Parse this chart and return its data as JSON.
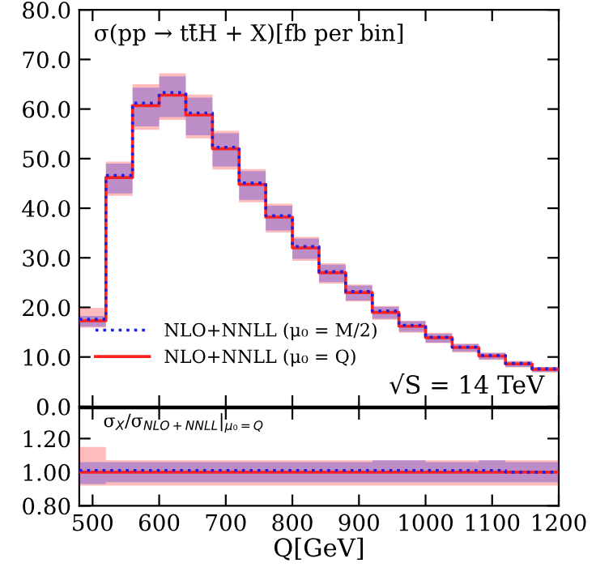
{
  "chart_data": [
    {
      "type": "step",
      "x": [
        480,
        520,
        560,
        600,
        640,
        680,
        720,
        760,
        800,
        840,
        880,
        920,
        960,
        1000,
        1040,
        1080,
        1120,
        1160,
        1200
      ],
      "series": [
        {
          "name": "NLO+NNLL (μ₀ = M/2)",
          "color": "#2020e0",
          "line_style": "dotted",
          "values": [
            17.6,
            46.6,
            61.2,
            63.3,
            59.2,
            52.3,
            45.1,
            38.5,
            32.3,
            27.2,
            23.2,
            19.3,
            16.4,
            14.0,
            12.0,
            10.3,
            8.7,
            7.6,
            7.6
          ],
          "lower": [
            16.1,
            43.0,
            56.5,
            58.4,
            54.7,
            48.4,
            41.7,
            35.5,
            29.8,
            25.1,
            21.4,
            17.7,
            15.1,
            12.9,
            11.1,
            9.5,
            8.0,
            7.0,
            7.0
          ],
          "upper": [
            18.3,
            49.0,
            64.3,
            66.6,
            62.3,
            55.1,
            47.5,
            40.5,
            33.9,
            28.6,
            24.4,
            20.1,
            17.2,
            14.7,
            12.6,
            10.8,
            9.1,
            8.0,
            8.0
          ]
        },
        {
          "name": "NLO+NNLL (μ₀ = Q)",
          "color": "#ff2020",
          "line_style": "solid",
          "values": [
            17.3,
            46.2,
            60.7,
            62.8,
            58.8,
            52.0,
            44.8,
            38.2,
            32.0,
            27.0,
            23.0,
            19.0,
            16.2,
            13.9,
            11.9,
            10.2,
            8.6,
            7.5,
            7.5
          ],
          "lower": [
            15.9,
            42.5,
            55.8,
            57.8,
            54.1,
            47.8,
            41.2,
            35.1,
            29.4,
            24.8,
            21.2,
            17.5,
            14.9,
            12.8,
            10.9,
            9.4,
            7.9,
            6.9,
            6.9
          ],
          "upper": [
            19.9,
            49.4,
            65.0,
            67.2,
            62.9,
            55.6,
            47.9,
            40.9,
            34.2,
            28.9,
            24.6,
            20.3,
            17.3,
            14.9,
            12.7,
            10.9,
            9.2,
            8.0,
            8.0
          ]
        }
      ],
      "xlim": [
        480,
        1200
      ],
      "xticks": [
        500,
        600,
        700,
        800,
        900,
        1000,
        1100,
        1200
      ],
      "ylim": [
        0,
        80
      ],
      "yticks": [
        {
          "value": 0,
          "label": "0.0"
        },
        {
          "value": 10,
          "label": "10.0"
        },
        {
          "value": 20,
          "label": "20.0"
        },
        {
          "value": 30,
          "label": "30.0"
        },
        {
          "value": 40,
          "label": "40.0"
        },
        {
          "value": 50,
          "label": "50.0"
        },
        {
          "value": 60,
          "label": "60.0"
        },
        {
          "value": 70,
          "label": "70.0"
        },
        {
          "value": 80,
          "label": "80.0"
        }
      ],
      "tick_labels": "y",
      "legend": "bottom left",
      "grid": false,
      "annotations": [
        "σ(pp → tt̄H + X)[fb per bin]",
        "√S = 14 TeV"
      ]
    },
    {
      "type": "step",
      "x": [
        480,
        520,
        560,
        600,
        640,
        680,
        720,
        760,
        800,
        840,
        880,
        920,
        960,
        1000,
        1040,
        1080,
        1120,
        1160,
        1200
      ],
      "series": [
        {
          "color": "#2020e0",
          "line_style": "dotted",
          "values": [
            1.01,
            1.01,
            1.01,
            1.01,
            1.01,
            1.01,
            1.01,
            1.01,
            1.01,
            1.01,
            1.01,
            1.01,
            1.01,
            1.01,
            1.01,
            1.01,
            1.0,
            1.0,
            1.0
          ],
          "lower": [
            0.93,
            0.94,
            0.94,
            0.94,
            0.94,
            0.94,
            0.94,
            0.94,
            0.94,
            0.94,
            0.94,
            0.94,
            0.94,
            0.94,
            0.94,
            0.94,
            0.94,
            0.94,
            0.94
          ],
          "upper": [
            1.06,
            1.06,
            1.06,
            1.06,
            1.06,
            1.06,
            1.06,
            1.06,
            1.06,
            1.06,
            1.06,
            1.07,
            1.07,
            1.06,
            1.06,
            1.07,
            1.06,
            1.06,
            1.06
          ]
        },
        {
          "color": "#ff2020",
          "line_style": "solid",
          "values": [
            1.0,
            1.0,
            1.0,
            1.0,
            1.0,
            1.0,
            1.0,
            1.0,
            1.0,
            1.0,
            1.0,
            1.0,
            1.0,
            1.0,
            1.0,
            1.0,
            1.0,
            1.0,
            1.0
          ],
          "lower": [
            0.92,
            0.92,
            0.92,
            0.92,
            0.92,
            0.92,
            0.92,
            0.92,
            0.92,
            0.92,
            0.92,
            0.92,
            0.92,
            0.92,
            0.92,
            0.92,
            0.92,
            0.92,
            0.92
          ],
          "upper": [
            1.15,
            1.07,
            1.07,
            1.07,
            1.07,
            1.07,
            1.07,
            1.07,
            1.07,
            1.07,
            1.07,
            1.07,
            1.07,
            1.07,
            1.07,
            1.07,
            1.07,
            1.07,
            1.07
          ]
        }
      ],
      "xlim": [
        480,
        1200
      ],
      "xticks": [
        500,
        600,
        700,
        800,
        900,
        1000,
        1100,
        1200
      ],
      "ylim": [
        0.8,
        1.38
      ],
      "yticks": [
        {
          "value": 0.8,
          "label": "0.80"
        },
        {
          "value": 1.0,
          "label": "1.00"
        },
        {
          "value": 1.2,
          "label": "1.20"
        }
      ],
      "xlabel": "Q[GeV]",
      "grid": false,
      "annotations": [
        "σ$_{X}$/σ$_{NLO+NNLL}$|$_{μ₀=Q}$"
      ]
    }
  ]
}
